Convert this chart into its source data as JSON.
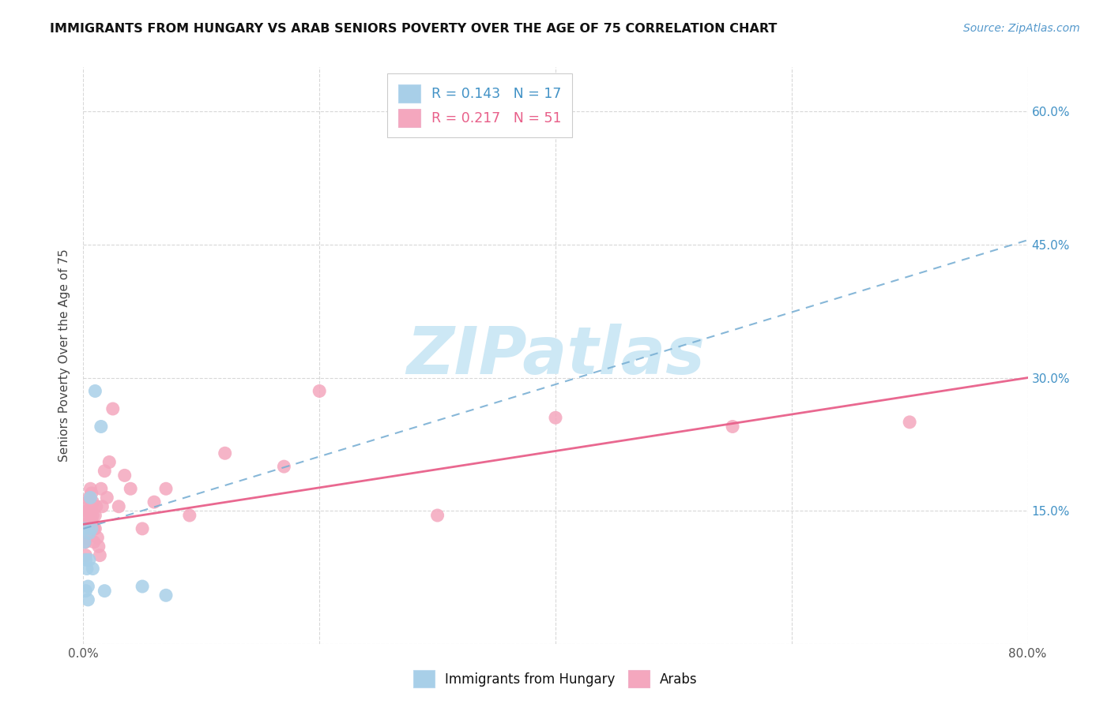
{
  "title": "IMMIGRANTS FROM HUNGARY VS ARAB SENIORS POVERTY OVER THE AGE OF 75 CORRELATION CHART",
  "source": "Source: ZipAtlas.com",
  "ylabel": "Seniors Poverty Over the Age of 75",
  "xlim": [
    0.0,
    0.8
  ],
  "ylim": [
    0.0,
    0.65
  ],
  "xtick_positions": [
    0.0,
    0.2,
    0.4,
    0.6,
    0.8
  ],
  "xtick_labels": [
    "0.0%",
    "",
    "",
    "",
    "80.0%"
  ],
  "ytick_positions": [
    0.0,
    0.15,
    0.3,
    0.45,
    0.6
  ],
  "right_ytick_positions": [
    0.15,
    0.3,
    0.45,
    0.6
  ],
  "right_ytick_labels": [
    "15.0%",
    "30.0%",
    "45.0%",
    "60.0%"
  ],
  "legend_line1": "R = 0.143   N = 17",
  "legend_line2": "R = 0.217   N = 51",
  "legend1_label": "Immigrants from Hungary",
  "legend2_label": "Arabs",
  "blue_scatter_color": "#a8cfe8",
  "pink_scatter_color": "#f4a7be",
  "blue_line_color": "#7ab0d4",
  "pink_line_color": "#e8608a",
  "watermark_color": "#cde8f5",
  "watermark_text": "ZIPatlas",
  "blue_x": [
    0.001,
    0.001,
    0.002,
    0.002,
    0.003,
    0.004,
    0.004,
    0.005,
    0.005,
    0.006,
    0.007,
    0.008,
    0.01,
    0.015,
    0.018,
    0.05,
    0.07
  ],
  "blue_y": [
    0.13,
    0.115,
    0.095,
    0.06,
    0.085,
    0.05,
    0.065,
    0.095,
    0.125,
    0.165,
    0.13,
    0.085,
    0.285,
    0.245,
    0.06,
    0.065,
    0.055
  ],
  "pink_x": [
    0.001,
    0.001,
    0.001,
    0.002,
    0.002,
    0.002,
    0.003,
    0.003,
    0.003,
    0.004,
    0.004,
    0.004,
    0.005,
    0.005,
    0.005,
    0.006,
    0.006,
    0.006,
    0.007,
    0.007,
    0.007,
    0.008,
    0.008,
    0.009,
    0.009,
    0.01,
    0.01,
    0.011,
    0.012,
    0.013,
    0.014,
    0.015,
    0.016,
    0.018,
    0.02,
    0.022,
    0.025,
    0.03,
    0.035,
    0.04,
    0.05,
    0.06,
    0.07,
    0.09,
    0.12,
    0.17,
    0.2,
    0.3,
    0.4,
    0.55,
    0.7
  ],
  "pink_y": [
    0.145,
    0.13,
    0.115,
    0.135,
    0.115,
    0.1,
    0.15,
    0.135,
    0.12,
    0.16,
    0.15,
    0.135,
    0.165,
    0.15,
    0.135,
    0.175,
    0.16,
    0.145,
    0.17,
    0.155,
    0.14,
    0.16,
    0.145,
    0.13,
    0.115,
    0.145,
    0.13,
    0.155,
    0.12,
    0.11,
    0.1,
    0.175,
    0.155,
    0.195,
    0.165,
    0.205,
    0.265,
    0.155,
    0.19,
    0.175,
    0.13,
    0.16,
    0.175,
    0.145,
    0.215,
    0.2,
    0.285,
    0.145,
    0.255,
    0.245,
    0.25
  ],
  "blue_trend_x0": 0.0,
  "blue_trend_y0": 0.13,
  "blue_trend_x1": 0.8,
  "blue_trend_y1": 0.455,
  "pink_trend_x0": 0.0,
  "pink_trend_y0": 0.135,
  "pink_trend_x1": 0.8,
  "pink_trend_y1": 0.3
}
